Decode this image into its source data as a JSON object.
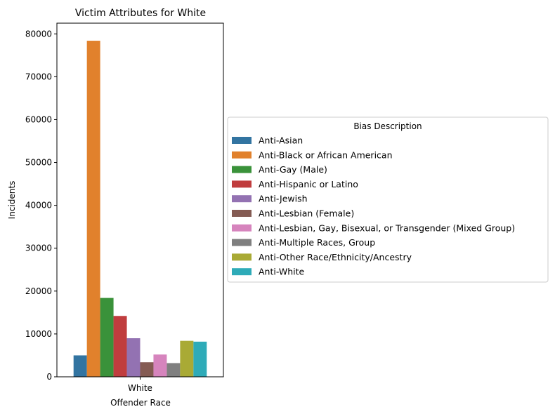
{
  "chart_data": {
    "type": "bar",
    "title": "Victim Attributes for White",
    "xlabel": "Offender Race",
    "ylabel": "Incidents",
    "categories": [
      "White"
    ],
    "ylim": [
      0,
      82500
    ],
    "yticks": [
      0,
      10000,
      20000,
      30000,
      40000,
      50000,
      60000,
      70000,
      80000
    ],
    "grid": false,
    "legend": {
      "title": "Bias Description",
      "placement": "outside-right-center"
    },
    "series": [
      {
        "name": "Anti-Asian",
        "values": [
          5000
        ],
        "color": "#3274a1"
      },
      {
        "name": "Anti-Black or African American",
        "values": [
          78400
        ],
        "color": "#e1812c"
      },
      {
        "name": "Anti-Gay (Male)",
        "values": [
          18400
        ],
        "color": "#3a923a"
      },
      {
        "name": "Anti-Hispanic or Latino",
        "values": [
          14200
        ],
        "color": "#c03d3e"
      },
      {
        "name": "Anti-Jewish",
        "values": [
          9000
        ],
        "color": "#9372b2"
      },
      {
        "name": "Anti-Lesbian (Female)",
        "values": [
          3400
        ],
        "color": "#845b53"
      },
      {
        "name": "Anti-Lesbian, Gay, Bisexual, or Transgender (Mixed Group)",
        "values": [
          5200
        ],
        "color": "#d684bd"
      },
      {
        "name": "Anti-Multiple Races, Group",
        "values": [
          3200
        ],
        "color": "#7f7f7f"
      },
      {
        "name": "Anti-Other Race/Ethnicity/Ancestry",
        "values": [
          8400
        ],
        "color": "#a9aa35"
      },
      {
        "name": "Anti-White",
        "values": [
          8200
        ],
        "color": "#2eabb8"
      }
    ]
  }
}
